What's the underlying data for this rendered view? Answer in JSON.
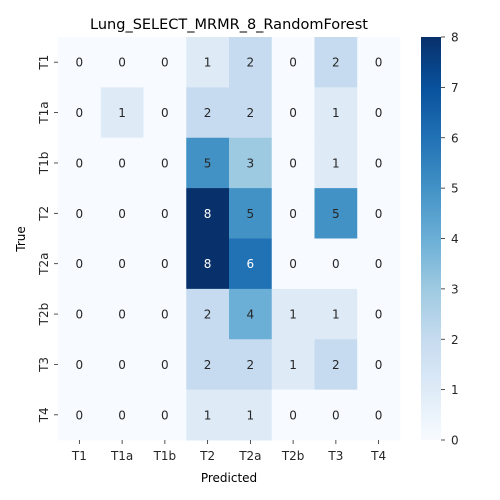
{
  "chart_data": {
    "type": "heatmap",
    "title": "Lung_SELECT_MRMR_8_RandomForest",
    "xlabel": "Predicted",
    "ylabel": "True",
    "x_categories": [
      "T1",
      "T1a",
      "T1b",
      "T2",
      "T2a",
      "T2b",
      "T3",
      "T4"
    ],
    "y_categories": [
      "T1",
      "T1a",
      "T1b",
      "T2",
      "T2a",
      "T2b",
      "T3",
      "T4"
    ],
    "values": [
      [
        0,
        0,
        0,
        1,
        2,
        0,
        2,
        0
      ],
      [
        0,
        1,
        0,
        2,
        2,
        0,
        1,
        0
      ],
      [
        0,
        0,
        0,
        5,
        3,
        0,
        1,
        0
      ],
      [
        0,
        0,
        0,
        8,
        5,
        0,
        5,
        0
      ],
      [
        0,
        0,
        0,
        8,
        6,
        0,
        0,
        0
      ],
      [
        0,
        0,
        0,
        2,
        4,
        1,
        1,
        0
      ],
      [
        0,
        0,
        0,
        2,
        2,
        1,
        2,
        0
      ],
      [
        0,
        0,
        0,
        1,
        1,
        0,
        0,
        0
      ]
    ],
    "color_range": [
      0,
      8
    ],
    "colorbar_ticks": [
      "0",
      "1",
      "2",
      "3",
      "4",
      "5",
      "6",
      "7",
      "8"
    ],
    "colormap": "Blues",
    "colors": {
      "low": "#f7fbff",
      "high": "#08306b"
    }
  }
}
